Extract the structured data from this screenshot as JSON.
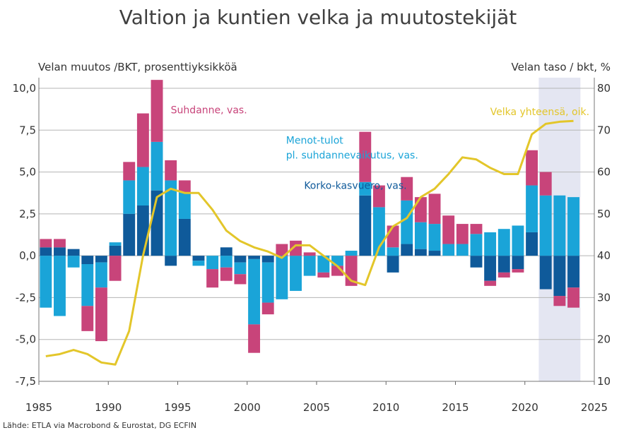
{
  "title": "Valtion ja kuntien velka ja muutostekijät",
  "left_axis_title": "Velan muutos /BKT, prosenttiyksikköä",
  "right_axis_title": "Velan taso / bkt, %",
  "source": "Lähde: ETLA via Macrobond & Eurostat, DG ECFIN",
  "colors": {
    "cycle": "#c8447a",
    "primary": "#1aa4d8",
    "interest": "#0f5a9a",
    "debt": "#e3c62a",
    "shade": "#e4e6f2",
    "grid": "#b5b5b5"
  },
  "annotations": [
    {
      "text": "Suhdanne, vas.",
      "color": "#c8447a",
      "x": 1994.5,
      "y": 8.5
    },
    {
      "text": "Menot-tulot",
      "color": "#1aa4d8",
      "x": 2002.8,
      "y": 6.7
    },
    {
      "text": "pl. suhdannevaikutus, vas.",
      "color": "#1aa4d8",
      "x": 2002.8,
      "y": 5.8
    },
    {
      "text": "Korko-kasvuero, vas.",
      "color": "#0f5a9a",
      "x": 2004.1,
      "y": 4.0
    },
    {
      "text": "Velka yhteensä, oik.",
      "color": "#e3c62a",
      "x": 2017.5,
      "y": 8.4
    }
  ],
  "chart_data": {
    "type": "bar",
    "title": "Valtion ja kuntien velka ja muutostekijät",
    "ylabel": "Velan muutos /BKT, prosenttiyksikköä",
    "y2label": "Velan taso / bkt, %",
    "xlim": [
      1985,
      2025
    ],
    "ylim": [
      -7.5,
      10.5
    ],
    "y2lim": [
      10,
      80
    ],
    "x_ticks": [
      1985,
      1990,
      1995,
      2000,
      2005,
      2010,
      2015,
      2020,
      2025
    ],
    "y_ticks": [
      10.0,
      7.5,
      5.0,
      2.5,
      0.0,
      -2.5,
      -5.0,
      -7.5
    ],
    "y_tick_labels": [
      "10,0",
      "7,5",
      "5,0",
      "2,5",
      "0,0",
      "-2,5",
      "-5,0",
      "-7,5"
    ],
    "y2_ticks": [
      80,
      70,
      60,
      50,
      40,
      30,
      20,
      10
    ],
    "grid": true,
    "shaded_range": [
      2021,
      2024
    ],
    "years": [
      1986,
      1987,
      1988,
      1989,
      1990,
      1991,
      1992,
      1993,
      1994,
      1995,
      1996,
      1997,
      1998,
      1999,
      2000,
      2001,
      2002,
      2003,
      2004,
      2005,
      2006,
      2007,
      2008,
      2009,
      2010,
      2011,
      2012,
      2013,
      2014,
      2015,
      2016,
      2017,
      2018,
      2019,
      2020,
      2021,
      2022,
      2023,
      2024
    ],
    "series": [
      {
        "name": "Korko-kasvuero, vas.",
        "type": "bar",
        "values": [
          0.5,
          0.5,
          0.4,
          -0.5,
          -0.4,
          0.6,
          2.5,
          3.0,
          3.9,
          -0.6,
          2.2,
          -0.3,
          0.0,
          0.5,
          -0.4,
          -0.2,
          -0.4,
          0.0,
          0.0,
          0.0,
          0.0,
          0.0,
          0.0,
          3.6,
          0.0,
          -1.0,
          0.7,
          0.4,
          0.3,
          0.0,
          0.0,
          -0.7,
          -1.5,
          -1.0,
          -0.8,
          1.4,
          -2.0,
          -2.4,
          -1.9
        ]
      },
      {
        "name": "Menot-tulot pl. suhdannevaikutus, vas.",
        "type": "bar",
        "values": [
          -3.1,
          -3.6,
          -0.7,
          -2.5,
          -1.5,
          0.2,
          2.0,
          2.3,
          2.9,
          4.5,
          1.6,
          -0.3,
          -0.8,
          -0.7,
          -0.7,
          -3.9,
          -2.4,
          -2.6,
          -2.1,
          -1.2,
          -1.0,
          -0.6,
          0.3,
          0.8,
          2.9,
          0.5,
          2.6,
          1.6,
          1.6,
          0.7,
          0.7,
          1.3,
          1.4,
          1.6,
          1.8,
          2.8,
          3.6,
          3.6,
          3.5
        ]
      },
      {
        "name": "Suhdanne, vas.",
        "type": "bar",
        "values": [
          0.5,
          0.5,
          0.0,
          -1.5,
          -3.2,
          -1.5,
          1.1,
          3.2,
          3.7,
          1.2,
          0.7,
          0.0,
          -1.1,
          -0.8,
          -0.6,
          -1.7,
          -0.7,
          0.7,
          0.9,
          0.2,
          -0.3,
          -0.6,
          -1.8,
          3.0,
          1.3,
          1.3,
          1.4,
          1.5,
          1.8,
          1.7,
          1.2,
          0.6,
          -0.3,
          -0.3,
          -0.2,
          2.1,
          1.4,
          -0.6,
          -1.2
        ]
      },
      {
        "name": "Velka yhteensä, oik.",
        "type": "line",
        "axis": "right",
        "x": [
          1985.5,
          1986.5,
          1987.5,
          1988.5,
          1989.5,
          1990.5,
          1991.5,
          1992.5,
          1993.5,
          1994.5,
          1995.5,
          1996.5,
          1997.5,
          1998.5,
          1999.5,
          2000.5,
          2001.5,
          2002.5,
          2003.5,
          2004.5,
          2005.5,
          2006.5,
          2007.5,
          2008.5,
          2009.5,
          2010.5,
          2011.5,
          2012.5,
          2013.5,
          2014.5,
          2015.5,
          2016.5,
          2017.5,
          2018.5,
          2019.5,
          2020.5,
          2021.5,
          2022.5,
          2023.5
        ],
        "values": [
          16,
          16.5,
          17.5,
          16.5,
          14.5,
          14,
          22,
          40,
          54,
          56,
          55,
          55,
          51,
          46,
          43.5,
          42,
          41,
          39.5,
          42.5,
          42.5,
          40,
          37.5,
          34,
          33,
          42,
          47,
          49,
          54,
          56,
          59.5,
          63.5,
          63,
          61,
          59.5,
          59.5,
          69,
          71.5,
          72,
          72.2
        ]
      }
    ]
  }
}
